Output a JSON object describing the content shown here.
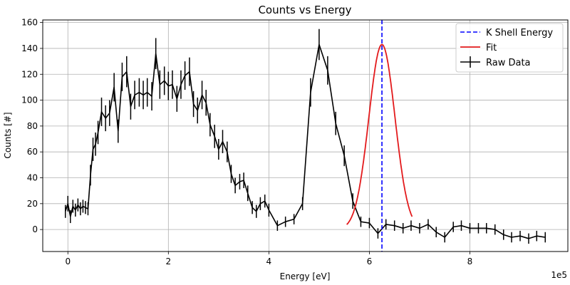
{
  "chart_data": {
    "type": "line",
    "title": "Counts vs Energy",
    "xlabel": "Energy [eV]",
    "ylabel": "Counts [#]",
    "x_offset_label": "1e5",
    "xlim": [
      -0.5,
      9.95
    ],
    "ylim": [
      -17,
      162
    ],
    "x_ticks": [
      0,
      2,
      4,
      6,
      8
    ],
    "y_ticks": [
      0,
      20,
      40,
      60,
      80,
      100,
      120,
      140,
      160
    ],
    "grid": true,
    "legend_position": "top-right",
    "colors": {
      "raw": "#000000",
      "fit": "#e31a1c",
      "kshell": "#0000ff",
      "grid": "#b0b0b0"
    },
    "series": [
      {
        "name": "Raw Data",
        "style": "errorbar",
        "x": [
          -0.05,
          0.0,
          0.05,
          0.1,
          0.15,
          0.2,
          0.25,
          0.3,
          0.35,
          0.4,
          0.45,
          0.5,
          0.55,
          0.6,
          0.67,
          0.75,
          0.83,
          0.92,
          1.0,
          1.08,
          1.17,
          1.25,
          1.33,
          1.42,
          1.5,
          1.58,
          1.67,
          1.75,
          1.83,
          1.92,
          2.0,
          2.08,
          2.17,
          2.25,
          2.33,
          2.42,
          2.5,
          2.58,
          2.67,
          2.75,
          2.83,
          2.92,
          3.0,
          3.08,
          3.17,
          3.25,
          3.33,
          3.42,
          3.5,
          3.58,
          3.67,
          3.75,
          3.83,
          3.92,
          4.0,
          4.17,
          4.33,
          4.5,
          4.67,
          4.83,
          5.0,
          5.17,
          5.33,
          5.5,
          5.67,
          5.83,
          6.0,
          6.17,
          6.33,
          6.5,
          6.67,
          6.83,
          7.0,
          7.17,
          7.33,
          7.5,
          7.67,
          7.83,
          8.0,
          8.17,
          8.33,
          8.5,
          8.67,
          8.83,
          9.0,
          9.17,
          9.33,
          9.5
        ],
        "y": [
          14,
          20,
          10,
          18,
          15,
          19,
          16,
          18,
          17,
          16,
          42,
          62,
          66,
          75,
          91,
          86,
          90,
          110,
          76,
          118,
          122,
          95,
          104,
          106,
          104,
          106,
          103,
          136,
          112,
          115,
          111,
          112,
          101,
          112,
          119,
          122,
          97,
          92,
          104,
          98,
          81,
          72,
          62,
          68,
          60,
          43,
          34,
          37,
          38,
          28,
          17,
          14,
          20,
          22,
          15,
          3,
          6,
          8,
          20,
          106,
          143,
          123,
          82,
          57,
          22,
          6,
          5,
          -3,
          4,
          3,
          1,
          3,
          1,
          4,
          -2,
          -6,
          2,
          3,
          1,
          1,
          1,
          0,
          -4,
          -6,
          -5,
          -7,
          -5,
          -6
        ],
        "yerr": [
          5,
          6,
          5,
          5,
          5,
          5,
          5,
          5,
          5,
          5,
          8,
          9,
          9,
          9,
          11,
          10,
          10,
          11,
          9,
          11,
          12,
          10,
          11,
          11,
          11,
          11,
          11,
          12,
          11,
          11,
          11,
          11,
          10,
          11,
          11,
          11,
          10,
          10,
          11,
          10,
          9,
          9,
          8,
          9,
          8,
          7,
          6,
          6,
          6,
          6,
          5,
          5,
          5,
          5,
          5,
          4,
          4,
          4,
          5,
          11,
          12,
          11,
          9,
          8,
          6,
          4,
          4,
          4,
          4,
          4,
          4,
          4,
          4,
          4,
          4,
          4,
          4,
          4,
          4,
          4,
          4,
          4,
          4,
          4,
          4,
          4,
          4,
          4
        ]
      },
      {
        "name": "Fit",
        "style": "gaussian",
        "amplitude": 143,
        "center": 6.25,
        "sigma": 0.26,
        "baseline": 0,
        "x_range": [
          5.55,
          6.85
        ]
      },
      {
        "name": "K Shell Energy",
        "style": "vline",
        "x": 6.25
      }
    ]
  }
}
